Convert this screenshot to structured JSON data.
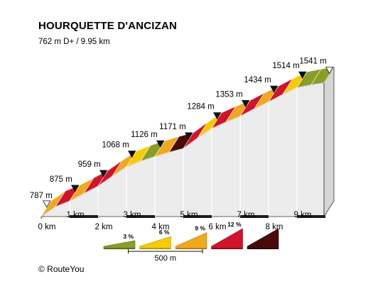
{
  "chart_data": {
    "type": "area",
    "title": "HOURQUETTE D'ANCIZAN",
    "subtitle": "762 m D+ / 9.95 km",
    "x_unit": "km",
    "y_unit": "m",
    "distance_km": [
      0,
      0.5,
      1,
      1.5,
      2,
      2.5,
      3,
      3.5,
      4,
      4.5,
      5,
      5.5,
      6,
      6.5,
      7,
      7.5,
      8,
      8.5,
      9,
      9.5,
      9.95
    ],
    "elevation_m": [
      787,
      843,
      875,
      917,
      959,
      1015,
      1068,
      1100,
      1126,
      1150,
      1171,
      1230,
      1284,
      1320,
      1353,
      1395,
      1434,
      1476,
      1514,
      1530,
      1541
    ],
    "segment_colors": [
      "#f0a81c",
      "#d0142b",
      "#f0a81c",
      "#d0142b",
      "#d0142b",
      "#f0a81c",
      "#f6cc00",
      "#889e26",
      "#f0a81c",
      "#4a0a0a",
      "#d0142b",
      "#f6cc00",
      "#d0142b",
      "#f0a81c",
      "#d0142b",
      "#f0a81c",
      "#d0142b",
      "#f6cc00",
      "#889e26",
      "#889e26"
    ],
    "x_tick_labels": [
      "0 km",
      "1 km",
      "2 km",
      "3 km",
      "4 km",
      "5 km",
      "6 km",
      "7 km",
      "8 km",
      "9 km"
    ],
    "x_tick_values": [
      0,
      1,
      2,
      3,
      4,
      5,
      6,
      7,
      8,
      9
    ],
    "markers": [
      {
        "label": "787 m",
        "km": 0,
        "style": "open"
      },
      {
        "label": "875 m",
        "km": 1,
        "style": "filled"
      },
      {
        "label": "959 m",
        "km": 2,
        "style": "filled"
      },
      {
        "label": "1068 m",
        "km": 3,
        "style": "filled"
      },
      {
        "label": "1126 m",
        "km": 4,
        "style": "filled"
      },
      {
        "label": "1171 m",
        "km": 5,
        "style": "filled"
      },
      {
        "label": "1284 m",
        "km": 6,
        "style": "filled"
      },
      {
        "label": "1353 m",
        "km": 7,
        "style": "filled"
      },
      {
        "label": "1434 m",
        "km": 8,
        "style": "filled"
      },
      {
        "label": "1514 m",
        "km": 9,
        "style": "filled"
      },
      {
        "label": "1541 m",
        "km": 9.95,
        "style": "open"
      }
    ],
    "legend": [
      {
        "label": "3 %",
        "color": "#889e26",
        "dark": "#5e6e18",
        "level": 0.4
      },
      {
        "label": "6 %",
        "color": "#f6cc00",
        "dark": "#b89800",
        "level": 0.6
      },
      {
        "label": "9 %",
        "color": "#f0a81c",
        "dark": "#b87c10",
        "level": 0.8
      },
      {
        "label": "12 %",
        "color": "#d0142b",
        "dark": "#8e0d1d",
        "level": 1.0
      },
      {
        "label": "",
        "color": "#4a0a0a",
        "dark": "#2a0505",
        "level": 1.0
      }
    ],
    "scale_bar_label": "500 m",
    "colors": {
      "face": "#ececec",
      "side": "#d5d5d5",
      "stripe": "#1c1c1c",
      "edge": "#333333"
    }
  },
  "footer": {
    "copyright": "© RouteYou"
  }
}
